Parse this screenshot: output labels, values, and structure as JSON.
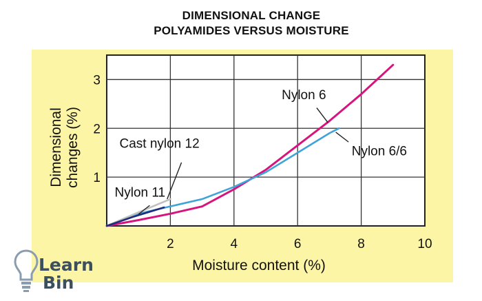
{
  "title_lines": [
    "DIMENSIONAL CHANGE",
    "POLYAMIDES VERSUS MOISTURE"
  ],
  "logo": {
    "line1": "Learn",
    "line2": "Bin"
  },
  "chart_data": {
    "type": "line",
    "title": "DIMENSIONAL CHANGE POLYAMIDES VERSUS MOISTURE",
    "xlabel": "Moisture content (%)",
    "ylabel": [
      "Dimensional",
      "changes (%)"
    ],
    "xlim": [
      0,
      10
    ],
    "ylim": [
      0,
      3.5
    ],
    "xticks": [
      2,
      4,
      6,
      8,
      10
    ],
    "yticks": [
      1,
      2,
      3
    ],
    "grid": true,
    "series": [
      {
        "name": "Nylon 6",
        "color": "#d6147e",
        "x": [
          0,
          1,
          2,
          3,
          4,
          5,
          6,
          7,
          8,
          9
        ],
        "y": [
          0,
          0.12,
          0.25,
          0.4,
          0.75,
          1.15,
          1.65,
          2.15,
          2.7,
          3.3
        ]
      },
      {
        "name": "Nylon 6/6",
        "color": "#3fa3d8",
        "x": [
          0,
          1,
          2,
          3,
          4,
          5,
          6,
          7,
          7.3
        ],
        "y": [
          0,
          0.25,
          0.4,
          0.55,
          0.8,
          1.1,
          1.5,
          1.9,
          2.0
        ]
      },
      {
        "name": "Cast nylon 12",
        "color": "#c0c0c0",
        "x": [
          0,
          1,
          2
        ],
        "y": [
          0,
          0.28,
          0.55
        ]
      },
      {
        "name": "Nylon 11",
        "color": "#1f2d7a",
        "x": [
          0,
          0.8,
          1.8
        ],
        "y": [
          0,
          0.18,
          0.38
        ]
      }
    ],
    "annotations": [
      {
        "text": "Nylon 6",
        "x": 5.5,
        "y": 2.6
      },
      {
        "text": "Nylon 6/6",
        "x": 7.7,
        "y": 1.45
      },
      {
        "text": "Cast nylon 12",
        "x": 0.4,
        "y": 1.6
      },
      {
        "text": "Nylon 11",
        "x": 0.25,
        "y": 0.6
      }
    ]
  }
}
